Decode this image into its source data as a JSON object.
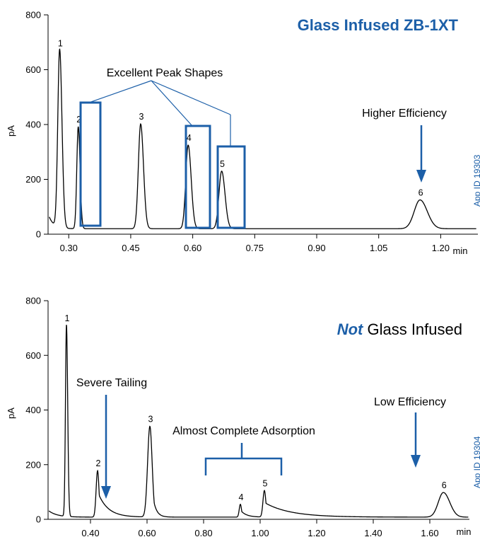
{
  "colors": {
    "accent": "#1c5fa8",
    "trace": "#000000"
  },
  "chart_data": [
    {
      "type": "line",
      "title": "Glass Infused ZB-1XT",
      "ylabel": "pA",
      "xlabel": "min",
      "app_id": "App ID 19303",
      "xlim": [
        0.25,
        1.29
      ],
      "ylim": [
        0,
        800
      ],
      "x_ticks": [
        "0.30",
        "0.45",
        "0.60",
        "0.75",
        "0.90",
        "1.05",
        "1.20"
      ],
      "x_tick_values": [
        0.3,
        0.45,
        0.6,
        0.75,
        0.9,
        1.05,
        1.2
      ],
      "y_ticks": [
        "0",
        "200",
        "400",
        "600",
        "800"
      ],
      "y_tick_values": [
        0,
        200,
        400,
        600,
        800
      ],
      "baseline": 20,
      "peaks": [
        {
          "label": "1",
          "x": 0.278,
          "height": 670
        },
        {
          "label": "2",
          "x": 0.323,
          "height": 392
        },
        {
          "label": "3",
          "x": 0.474,
          "height": 402
        },
        {
          "label": "4",
          "x": 0.589,
          "height": 325
        },
        {
          "label": "5",
          "x": 0.67,
          "height": 230
        },
        {
          "label": "6",
          "x": 1.15,
          "height": 125
        }
      ],
      "annotations": [
        {
          "text": "Excellent Peak Shapes"
        },
        {
          "text": "Higher Efficiency"
        }
      ]
    },
    {
      "type": "line",
      "title_emph": "Not",
      "title_rest": " Glass Infused",
      "ylabel": "pA",
      "xlabel": "min",
      "app_id": "App ID 19304",
      "xlim": [
        0.25,
        1.74
      ],
      "ylim": [
        0,
        800
      ],
      "x_ticks": [
        "0.40",
        "0.60",
        "0.80",
        "1.00",
        "1.20",
        "1.40",
        "1.60"
      ],
      "x_tick_values": [
        0.4,
        0.6,
        0.8,
        1.0,
        1.2,
        1.4,
        1.6
      ],
      "y_ticks": [
        "0",
        "200",
        "400",
        "600",
        "800"
      ],
      "y_tick_values": [
        0,
        200,
        400,
        600,
        800
      ],
      "baseline": 8,
      "peaks": [
        {
          "label": "1",
          "x": 0.315,
          "height": 710
        },
        {
          "label": "2",
          "x": 0.425,
          "height": 178
        },
        {
          "label": "3",
          "x": 0.61,
          "height": 340
        },
        {
          "label": "4",
          "x": 0.93,
          "height": 55
        },
        {
          "label": "5",
          "x": 1.015,
          "height": 105
        },
        {
          "label": "6",
          "x": 1.648,
          "height": 98
        }
      ],
      "annotations": [
        {
          "text": "Severe Tailing"
        },
        {
          "text": "Almost Complete Adsorption"
        },
        {
          "text": "Low Efficiency"
        }
      ]
    }
  ]
}
